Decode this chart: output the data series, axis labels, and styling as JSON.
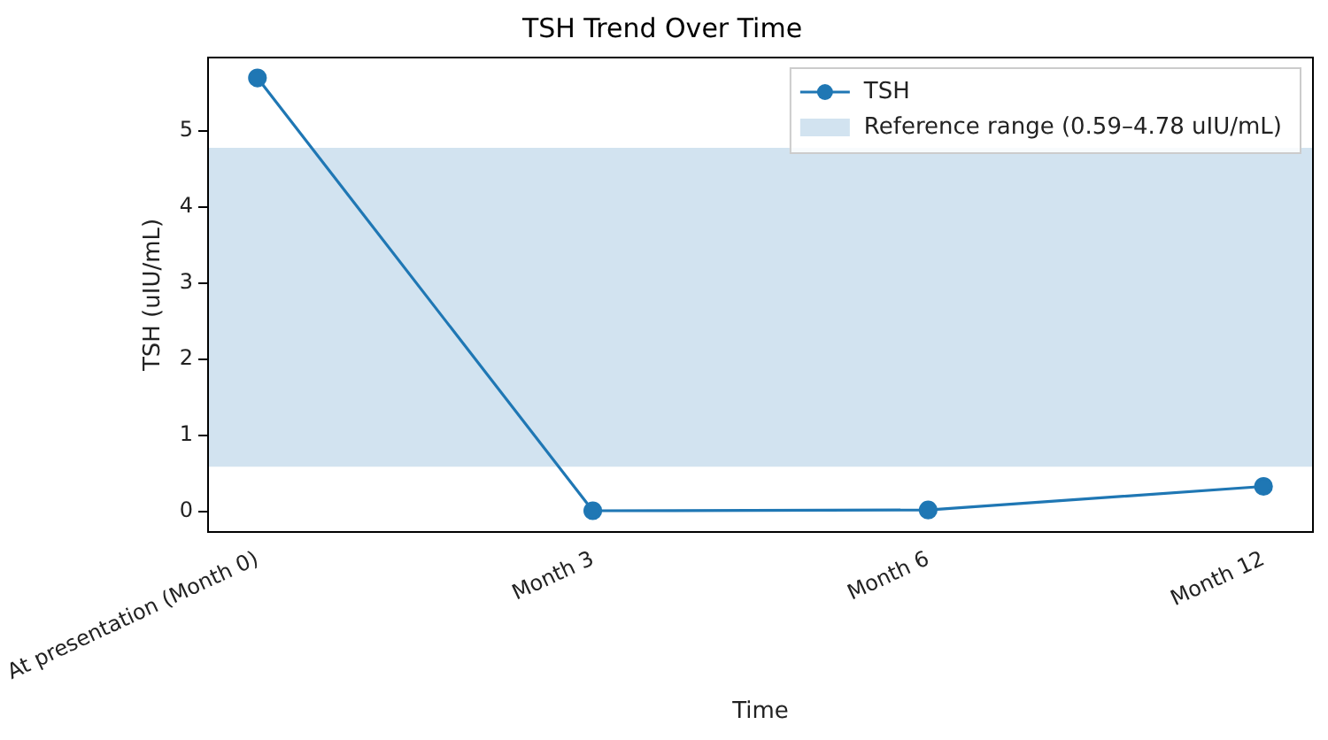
{
  "chart_data": {
    "type": "line",
    "title": "TSH Trend Over Time",
    "xlabel": "Time",
    "ylabel": "TSH (uIU/mL)",
    "categories": [
      "At presentation (Month 0)",
      "Month 3",
      "Month 6",
      "Month 12"
    ],
    "series": [
      {
        "name": "TSH",
        "color": "#1f77b4",
        "values": [
          5.7,
          0.01,
          0.02,
          0.33
        ]
      }
    ],
    "bands": [
      {
        "axis": "y",
        "from": 0.59,
        "to": 4.78,
        "label": "Reference range (0.59–4.78 uIU/mL)",
        "color": "#d2e3f0"
      }
    ],
    "ylim": [
      -0.28,
      5.98
    ],
    "yticks": [
      0,
      1,
      2,
      3,
      4,
      5
    ],
    "grid": false,
    "legend": "top right",
    "marker": "circle",
    "line_style": "solid"
  }
}
